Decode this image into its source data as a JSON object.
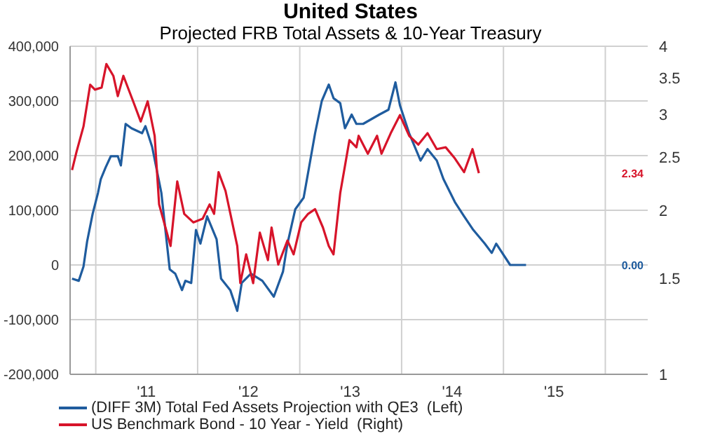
{
  "chart_data": {
    "type": "line",
    "title": "United States",
    "subtitle": "Projected FRB Total Assets & 10-Year Treasury",
    "series": [
      {
        "name": "(DIFF 3M) Total Fed Assets Projection with QE3  (Left)",
        "color": "#1f5c9e",
        "x": [
          "2010-10-08",
          "2010-11-01",
          "2010-11-18",
          "2010-12-01",
          "2010-12-21",
          "2011-01-09",
          "2011-01-19",
          "2011-02-05",
          "2011-02-24",
          "2011-03-21",
          "2011-04-01",
          "2011-04-18",
          "2011-05-09",
          "2011-06-16",
          "2011-06-28",
          "2011-07-22",
          "2011-08-24",
          "2011-09-23",
          "2011-10-13",
          "2011-11-06",
          "2011-11-18",
          "2011-12-09",
          "2011-12-26",
          "2012-01-11",
          "2012-02-04",
          "2012-03-09",
          "2012-03-25",
          "2012-04-27",
          "2012-05-22",
          "2012-06-07",
          "2012-07-10",
          "2012-08-20",
          "2012-09-30",
          "2012-11-02",
          "2012-11-18",
          "2012-12-16",
          "2013-01-15",
          "2013-02-25",
          "2013-03-21",
          "2013-04-15",
          "2013-05-02",
          "2013-05-26",
          "2013-06-12",
          "2013-07-06",
          "2013-07-23",
          "2013-08-16",
          "2013-10-13",
          "2013-11-15",
          "2013-12-10",
          "2013-12-26",
          "2014-01-28",
          "2014-03-10",
          "2014-04-04",
          "2014-05-07",
          "2014-05-31",
          "2014-07-11",
          "2014-08-13",
          "2014-09-15",
          "2014-10-26",
          "2014-11-20",
          "2014-12-06",
          "2015-01-25",
          "2015-03-23"
        ],
        "values": [
          -25000,
          -29000,
          -3000,
          43000,
          94000,
          132000,
          157000,
          178000,
          199000,
          199000,
          182000,
          258000,
          250000,
          241000,
          254000,
          216000,
          132000,
          -8000,
          -16000,
          -46000,
          -29000,
          -33000,
          64000,
          39000,
          89000,
          47000,
          -25000,
          -46000,
          -84000,
          -33000,
          -16000,
          -29000,
          -58000,
          -12000,
          39000,
          102000,
          123000,
          241000,
          300000,
          330000,
          305000,
          296000,
          250000,
          275000,
          258000,
          258000,
          275000,
          284000,
          334000,
          292000,
          241000,
          191000,
          212000,
          191000,
          157000,
          115000,
          89000,
          64000,
          39000,
          22000,
          39000,
          0,
          0
        ]
      },
      {
        "name": "US Benchmark Bond - 10 Year - Yield  (Right)",
        "color": "#d7142a",
        "axis": "y2",
        "x": [
          "2010-10-08",
          "2010-10-24",
          "2010-11-18",
          "2010-12-12",
          "2010-12-29",
          "2011-01-22",
          "2011-02-08",
          "2011-03-05",
          "2011-03-21",
          "2011-04-10",
          "2011-05-18",
          "2011-06-11",
          "2011-07-06",
          "2011-07-31",
          "2011-08-16",
          "2011-09-26",
          "2011-10-20",
          "2011-11-14",
          "2011-12-17",
          "2012-01-19",
          "2012-02-13",
          "2012-02-29",
          "2012-03-16",
          "2012-04-10",
          "2012-05-22",
          "2012-06-02",
          "2012-06-23",
          "2012-07-18",
          "2012-08-11",
          "2012-09-09",
          "2012-09-22",
          "2012-10-16",
          "2012-11-18",
          "2012-12-10",
          "2013-01-06",
          "2013-01-31",
          "2013-02-25",
          "2013-03-25",
          "2013-04-15",
          "2013-05-02",
          "2013-05-26",
          "2013-06-28",
          "2013-07-23",
          "2013-07-31",
          "2013-09-02",
          "2013-10-05",
          "2013-10-21",
          "2013-11-23",
          "2013-12-26",
          "2014-01-28",
          "2014-03-02",
          "2014-04-04",
          "2014-05-07",
          "2014-06-08",
          "2014-07-11",
          "2014-08-13",
          "2014-09-12",
          "2014-10-05"
        ],
        "values": [
          2.37,
          2.56,
          2.85,
          3.4,
          3.33,
          3.36,
          3.71,
          3.53,
          3.24,
          3.53,
          3.14,
          2.91,
          3.17,
          2.74,
          2.05,
          1.72,
          2.26,
          1.97,
          1.9,
          1.93,
          2.05,
          1.97,
          2.35,
          2.17,
          1.72,
          1.47,
          1.66,
          1.47,
          1.82,
          1.62,
          1.86,
          1.59,
          1.76,
          1.66,
          1.9,
          1.97,
          2.01,
          1.86,
          1.72,
          1.66,
          2.15,
          2.69,
          2.61,
          2.74,
          2.54,
          2.74,
          2.54,
          2.77,
          2.99,
          2.74,
          2.64,
          2.77,
          2.59,
          2.61,
          2.49,
          2.35,
          2.59,
          2.34
        ]
      }
    ],
    "xlim": [
      "2010-10-01",
      "2016-06-01"
    ],
    "xticks": [
      {
        "value": "2011-01-01",
        "label": null
      },
      {
        "value": "2011-07-01",
        "label": "'11"
      },
      {
        "value": "2012-01-01",
        "label": null
      },
      {
        "value": "2012-07-01",
        "label": "'12"
      },
      {
        "value": "2013-01-01",
        "label": null
      },
      {
        "value": "2013-07-01",
        "label": "'13"
      },
      {
        "value": "2014-01-01",
        "label": null
      },
      {
        "value": "2014-07-01",
        "label": "'14"
      },
      {
        "value": "2015-01-01",
        "label": null
      },
      {
        "value": "2015-07-01",
        "label": "'15"
      },
      {
        "value": "2016-01-01",
        "label": null
      }
    ],
    "ylim": [
      -200000,
      400000
    ],
    "yticks": [
      {
        "value": -200000,
        "label": "-200,000"
      },
      {
        "value": -100000,
        "label": "-100,000"
      },
      0,
      {
        "value": 100000,
        "label": "100,000"
      },
      {
        "value": 200000,
        "label": "200,000"
      },
      {
        "value": 300000,
        "label": "300,000"
      },
      {
        "value": 400000,
        "label": "400,000"
      }
    ],
    "y2lim": [
      1,
      4
    ],
    "y2ticks": [
      1,
      1.5,
      2,
      2.5,
      3,
      3.5,
      4
    ],
    "log": "y2",
    "annotations": [
      "0.00",
      "2.34"
    ],
    "grid": true,
    "legend": "bottom",
    "marker": "none",
    "line_style": "solid"
  }
}
